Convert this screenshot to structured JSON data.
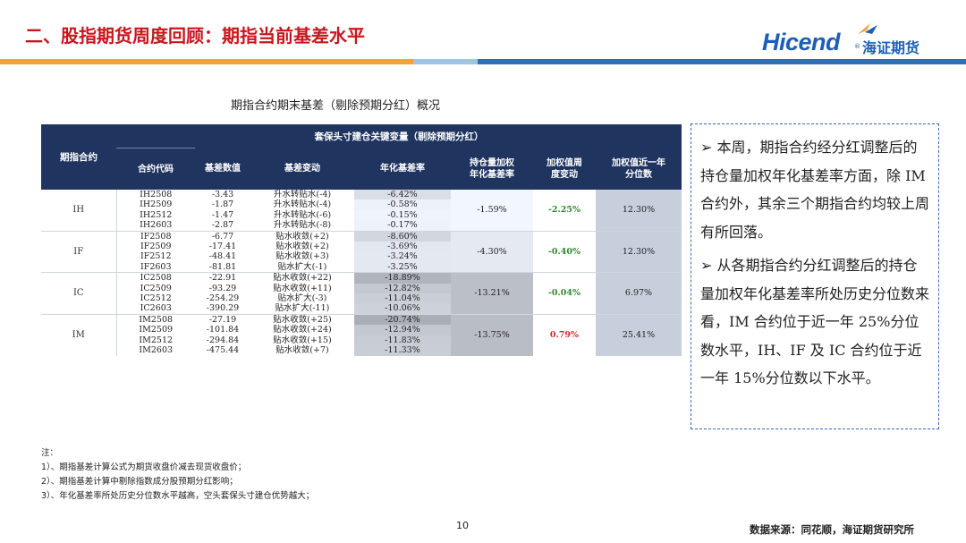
{
  "header": {
    "title": "二、股指期货周度回顾：期指当前基差水平",
    "logo_text": "Hicend",
    "logo_reg": "®",
    "logo_cn": "海证期货"
  },
  "colors": {
    "title_red": "#c8161d",
    "brand_blue": "#1d5fb4",
    "bar_orange": "#f2a23a",
    "bar_light_blue": "#9dc3e6",
    "bar_dark_blue": "#2f6fb5",
    "table_header": "#1f3560",
    "highlight_cell": "#c7cfdd",
    "green": "#2e8b2e",
    "red": "#d62728"
  },
  "subtitle": "期指合约期末基差（剔除预期分红）概况",
  "table": {
    "header_group_label": "期指合约",
    "header_span_label": "套保头寸建仓关键变量（剔除预期分红）",
    "columns": [
      "合约代码",
      "基差数值",
      "基差变动",
      "年化基差率",
      "持仓量加权\n年化基差率",
      "加权值周\n度变动",
      "加权值近一年\n分位数"
    ],
    "groups": [
      {
        "name": "IH",
        "rows": [
          {
            "code": "IH2508",
            "basis": "-3.43",
            "change": "升水转贴水(-4)",
            "annual": "-6.42%"
          },
          {
            "code": "IH2509",
            "basis": "-1.87",
            "change": "升水转贴水(-4)",
            "annual": "-0.58%"
          },
          {
            "code": "IH2512",
            "basis": "-1.47",
            "change": "升水转贴水(-6)",
            "annual": "-0.15%"
          },
          {
            "code": "IH2603",
            "basis": "-2.87",
            "change": "升水转贴水(-8)",
            "annual": "-0.17%"
          }
        ],
        "weighted_annual": "-1.59%",
        "weekly_change": "-2.25%",
        "weekly_change_color": "green",
        "percentile": "12.30%"
      },
      {
        "name": "IF",
        "rows": [
          {
            "code": "IF2508",
            "basis": "-6.77",
            "change": "贴水收敛(+2)",
            "annual": "-8.60%"
          },
          {
            "code": "IF2509",
            "basis": "-17.41",
            "change": "贴水收敛(+2)",
            "annual": "-3.69%"
          },
          {
            "code": "IF2512",
            "basis": "-48.41",
            "change": "贴水收敛(+3)",
            "annual": "-3.24%"
          },
          {
            "code": "IF2603",
            "basis": "-81.81",
            "change": "贴水扩大(-1)",
            "annual": "-3.25%"
          }
        ],
        "weighted_annual": "-4.30%",
        "weekly_change": "-0.40%",
        "weekly_change_color": "green",
        "percentile": "12.30%"
      },
      {
        "name": "IC",
        "rows": [
          {
            "code": "IC2508",
            "basis": "-22.91",
            "change": "贴水收敛(+22)",
            "annual": "-18.89%"
          },
          {
            "code": "IC2509",
            "basis": "-93.29",
            "change": "贴水收敛(+11)",
            "annual": "-12.82%"
          },
          {
            "code": "IC2512",
            "basis": "-254.29",
            "change": "贴水扩大(-3)",
            "annual": "-11.04%"
          },
          {
            "code": "IC2603",
            "basis": "-390.29",
            "change": "贴水扩大(-11)",
            "annual": "-10.06%"
          }
        ],
        "weighted_annual": "-13.21%",
        "weekly_change": "-0.04%",
        "weekly_change_color": "green",
        "percentile": "6.97%"
      },
      {
        "name": "IM",
        "rows": [
          {
            "code": "IM2508",
            "basis": "-27.19",
            "change": "贴水收敛(+25)",
            "annual": "-20.74%"
          },
          {
            "code": "IM2509",
            "basis": "-101.84",
            "change": "贴水收敛(+24)",
            "annual": "-12.94%"
          },
          {
            "code": "IM2512",
            "basis": "-294.84",
            "change": "贴水收敛(+15)",
            "annual": "-11.83%"
          },
          {
            "code": "IM2603",
            "basis": "-475.44",
            "change": "贴水收敛(+7)",
            "annual": "-11.33%"
          }
        ],
        "weighted_annual": "-13.75%",
        "weekly_change": "0.79%",
        "weekly_change_color": "red",
        "percentile": "25.41%"
      }
    ]
  },
  "commentary": {
    "para1": "➢  本周，期指合约经分红调整后的持仓量加权年化基差率方面，除 IM 合约外，其余三个期指合约均较上周有所回落。",
    "para2": "➢  从各期指合约分红调整后的持仓量加权年化基差率所处历史分位数来看，IM 合约位于近一年 25%分位数水平，IH、IF 及 IC 合约位于近一年 15%分位数以下水平。"
  },
  "notes": {
    "heading": "注：",
    "items": [
      "1）、期指基差计算公式为期货收盘价减去现货收盘价；",
      "2）、期指基差计算中剔除指数成分股预期分红影响；",
      "3）、年化基差率所处历史分位数水平越高，空头套保头寸建仓优势越大；"
    ]
  },
  "footer": {
    "page_number": "10",
    "source": "数据来源：同花顺，海证期货研究所"
  }
}
